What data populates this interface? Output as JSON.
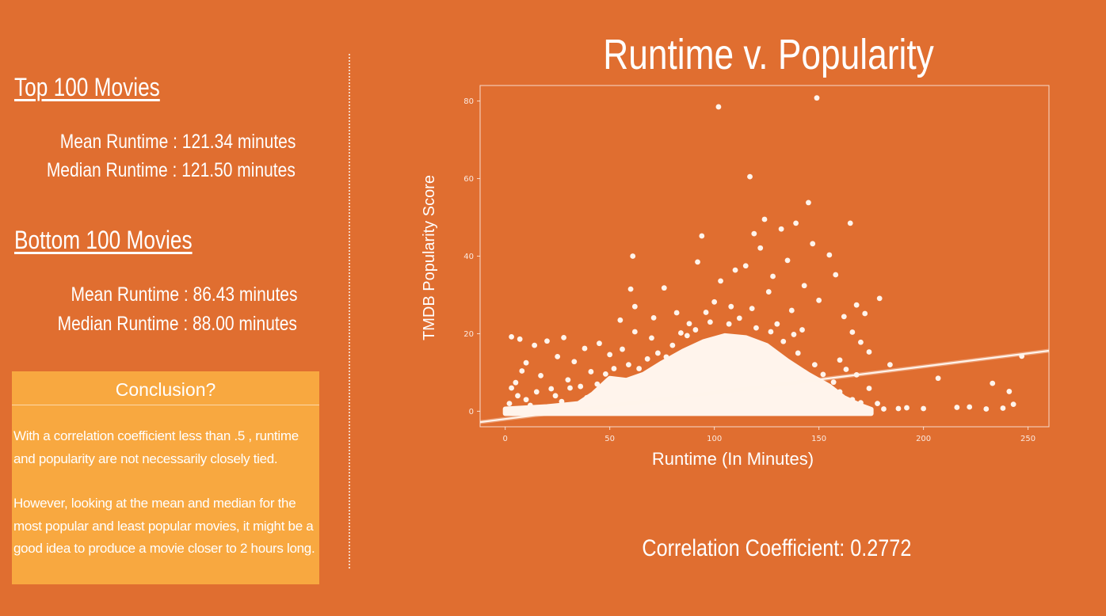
{
  "left": {
    "top_heading": "Top 100 Movies",
    "top_mean": "Mean Runtime : 121.34 minutes",
    "top_median": "Median Runtime : 121.50 minutes",
    "bottom_heading": "Bottom 100 Movies",
    "bottom_mean": "Mean Runtime : 86.43 minutes",
    "bottom_median": "Median Runtime : 88.00 minutes",
    "conclusion_title": "Conclusion?",
    "conclusion_p1": "With a correlation coefficient less than .5 , runtime and popularity are not necessarily closely tied.",
    "conclusion_p2": "However, looking at the mean and median for the most popular and least popular movies, it might be a good idea to produce a movie closer to 2 hours long."
  },
  "correlation_text": "Correlation Coefficient: 0.2772",
  "colors": {
    "background": "#E06E30",
    "conclusion_box": "#F8A840",
    "points": "#FFF4EC"
  },
  "chart_data": {
    "type": "scatter",
    "title": "Runtime v. Popularity",
    "xlabel": "Runtime (In Minutes)",
    "ylabel": "TMDB Popularity Score",
    "xlim": [
      -12,
      260
    ],
    "ylim": [
      -4,
      84
    ],
    "x_ticks": [
      0,
      50,
      100,
      150,
      200,
      250
    ],
    "y_ticks": [
      0,
      20,
      40,
      60,
      80
    ],
    "grid": false,
    "regression_line": [
      {
        "x": -12,
        "y": -2.8
      },
      {
        "x": 260,
        "y": 15.6
      }
    ],
    "points": [
      {
        "x": 102,
        "y": 78.5
      },
      {
        "x": 149,
        "y": 80.8
      },
      {
        "x": 117,
        "y": 60.5
      },
      {
        "x": 145,
        "y": 53.8
      },
      {
        "x": 124,
        "y": 49.5
      },
      {
        "x": 165,
        "y": 48.5
      },
      {
        "x": 132,
        "y": 47.0
      },
      {
        "x": 119,
        "y": 45.8
      },
      {
        "x": 94,
        "y": 45.2
      },
      {
        "x": 139,
        "y": 48.5
      },
      {
        "x": 61,
        "y": 40.0
      },
      {
        "x": 92,
        "y": 38.5
      },
      {
        "x": 122,
        "y": 42.1
      },
      {
        "x": 147,
        "y": 43.2
      },
      {
        "x": 155,
        "y": 40.3
      },
      {
        "x": 110,
        "y": 36.4
      },
      {
        "x": 128,
        "y": 34.8
      },
      {
        "x": 135,
        "y": 38.9
      },
      {
        "x": 103,
        "y": 33.6
      },
      {
        "x": 60,
        "y": 31.5
      },
      {
        "x": 76,
        "y": 31.8
      },
      {
        "x": 143,
        "y": 32.4
      },
      {
        "x": 158,
        "y": 35.2
      },
      {
        "x": 115,
        "y": 37.5
      },
      {
        "x": 82,
        "y": 25.4
      },
      {
        "x": 100,
        "y": 28.2
      },
      {
        "x": 126,
        "y": 30.8
      },
      {
        "x": 150,
        "y": 28.6
      },
      {
        "x": 168,
        "y": 27.4
      },
      {
        "x": 179,
        "y": 29.1
      },
      {
        "x": 62,
        "y": 27.0
      },
      {
        "x": 55,
        "y": 23.5
      },
      {
        "x": 71,
        "y": 24.1
      },
      {
        "x": 88,
        "y": 22.6
      },
      {
        "x": 137,
        "y": 26.0
      },
      {
        "x": 162,
        "y": 24.4
      },
      {
        "x": 172,
        "y": 25.2
      },
      {
        "x": 3,
        "y": 19.2
      },
      {
        "x": 7,
        "y": 18.6
      },
      {
        "x": 20,
        "y": 18.1
      },
      {
        "x": 28,
        "y": 19.0
      },
      {
        "x": 45,
        "y": 17.5
      },
      {
        "x": 62,
        "y": 20.5
      },
      {
        "x": 38,
        "y": 16.2
      },
      {
        "x": 14,
        "y": 17.0
      },
      {
        "x": 10,
        "y": 12.5
      },
      {
        "x": 25,
        "y": 14.1
      },
      {
        "x": 33,
        "y": 12.8
      },
      {
        "x": 50,
        "y": 14.6
      },
      {
        "x": 56,
        "y": 16.0
      },
      {
        "x": 70,
        "y": 18.9
      },
      {
        "x": 166,
        "y": 20.4
      },
      {
        "x": 170,
        "y": 17.8
      },
      {
        "x": 174,
        "y": 15.3
      },
      {
        "x": 160,
        "y": 13.2
      },
      {
        "x": 184,
        "y": 12.0
      },
      {
        "x": 207,
        "y": 8.5
      },
      {
        "x": 233,
        "y": 7.2
      },
      {
        "x": 241,
        "y": 5.1
      },
      {
        "x": 243,
        "y": 1.8
      },
      {
        "x": 247,
        "y": 14.2
      },
      {
        "x": 238,
        "y": 0.8
      },
      {
        "x": 230,
        "y": 0.6
      },
      {
        "x": 222,
        "y": 1.1
      },
      {
        "x": 216,
        "y": 1.0
      },
      {
        "x": 200,
        "y": 0.7
      },
      {
        "x": 192,
        "y": 0.9
      },
      {
        "x": 188,
        "y": 0.7
      },
      {
        "x": 181,
        "y": 0.6
      },
      {
        "x": 178,
        "y": 2.0
      },
      {
        "x": 174,
        "y": 5.9
      },
      {
        "x": 168,
        "y": 9.4
      },
      {
        "x": 163,
        "y": 10.8
      },
      {
        "x": 2,
        "y": 2.0
      },
      {
        "x": 5,
        "y": 7.4
      },
      {
        "x": 8,
        "y": 10.4
      },
      {
        "x": 17,
        "y": 9.2
      },
      {
        "x": 22,
        "y": 5.8
      },
      {
        "x": 30,
        "y": 8.1
      },
      {
        "x": 36,
        "y": 6.4
      },
      {
        "x": 41,
        "y": 10.2
      },
      {
        "x": 48,
        "y": 9.6
      }
    ],
    "dense_region_note": "Thousands of points overlap into a solid mound between roughly 40 and 165 minutes, peaking near 100-120 minutes at about 20."
  }
}
